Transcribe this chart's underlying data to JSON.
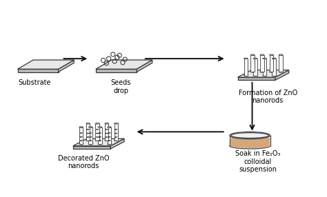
{
  "bg_color": "#ffffff",
  "figure_size": [
    4.74,
    2.86
  ],
  "dpi": 100,
  "labels": {
    "substrate": "Substrate",
    "seeds": "Seeds\ndrop",
    "formation": "Formation of ZnO\nnanorods",
    "soak": "Soak in Fe₂O₃\ncolloidal\nsuspension",
    "decorated": "Decorated ZnO\nnanorods"
  },
  "arrow_color": "#111111",
  "plate_face": "#e8e8e8",
  "plate_edge": "#333333",
  "plate_side": "#bbbbbb",
  "rod_face": "#f8f8f8",
  "rod_edge": "#444444",
  "dish_liquid_color": "#d4a87a",
  "dish_face": "#e8e8e8",
  "dish_edge": "#444444",
  "dot_color": "#111111",
  "font_size": 7.0,
  "xlim": [
    0,
    10
  ],
  "ylim": [
    0,
    6
  ]
}
